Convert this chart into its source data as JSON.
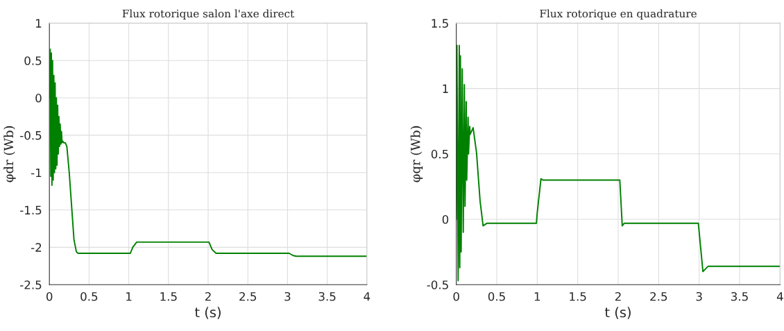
{
  "chart_data": [
    {
      "type": "line",
      "title": "Flux rotorique salon l'axe direct",
      "xlabel": "t (s)",
      "ylabel": "φdr (Wb)",
      "xlim": [
        0,
        4
      ],
      "ylim": [
        -2.5,
        1
      ],
      "xticks": [
        0,
        0.5,
        1,
        1.5,
        2,
        2.5,
        3,
        3.5,
        4
      ],
      "yticks": [
        -2.5,
        -2,
        -1.5,
        -1,
        -0.5,
        0,
        0.5,
        1
      ],
      "grid": true,
      "legend": false,
      "marker": "none",
      "line_style": "solid",
      "series": [
        {
          "color": "#008000",
          "x": [
            0,
            0.01,
            0.018,
            0.025,
            0.032,
            0.04,
            0.048,
            0.056,
            0.064,
            0.072,
            0.08,
            0.088,
            0.096,
            0.104,
            0.112,
            0.12,
            0.128,
            0.136,
            0.144,
            0.152,
            0.16,
            0.17,
            0.18,
            0.2,
            0.22,
            0.25,
            0.28,
            0.31,
            0.34,
            0.36,
            1.02,
            1.05,
            1.1,
            2.01,
            2.05,
            2.1,
            3.02,
            3.07,
            3.11,
            4
          ],
          "values": [
            0,
            0.65,
            -1.05,
            0.6,
            -1.17,
            0.5,
            -1.1,
            0.3,
            -1.0,
            0.2,
            -0.95,
            0.0,
            -0.9,
            -0.1,
            -0.75,
            -0.25,
            -0.65,
            -0.35,
            -0.62,
            -0.45,
            -0.6,
            -0.58,
            -0.6,
            -0.6,
            -0.65,
            -1.0,
            -1.45,
            -1.9,
            -2.06,
            -2.08,
            -2.08,
            -2.0,
            -1.93,
            -1.93,
            -2.03,
            -2.08,
            -2.08,
            -2.11,
            -2.12,
            -2.12
          ]
        }
      ]
    },
    {
      "type": "line",
      "title": "Flux rotorique en quadrature",
      "xlabel": "t (s)",
      "ylabel": "φqr (Wb)",
      "xlim": [
        0,
        4
      ],
      "ylim": [
        -0.5,
        1.5
      ],
      "xticks": [
        0,
        0.5,
        1,
        1.5,
        2,
        2.5,
        3,
        3.5,
        4
      ],
      "yticks": [
        -0.5,
        0,
        0.5,
        1,
        1.5
      ],
      "grid": true,
      "legend": false,
      "marker": "none",
      "line_style": "solid",
      "series": [
        {
          "color": "#008000",
          "x": [
            0,
            0.008,
            0.023,
            0.037,
            0.043,
            0.051,
            0.06,
            0.074,
            0.086,
            0.1,
            0.108,
            0.123,
            0.129,
            0.146,
            0.151,
            0.166,
            0.171,
            0.208,
            0.25,
            0.294,
            0.331,
            0.38,
            0.99,
            1.0,
            1.046,
            1.07,
            2.02,
            2.05,
            2.076,
            2.99,
            3.047,
            3.11,
            4
          ],
          "values": [
            0,
            1.33,
            -0.47,
            1.33,
            -0.37,
            1.25,
            -0.25,
            1.15,
            -0.1,
            1.03,
            0.1,
            0.9,
            0.3,
            0.78,
            0.5,
            0.71,
            0.65,
            0.7,
            0.51,
            0.14,
            -0.05,
            -0.03,
            -0.03,
            0.05,
            0.31,
            0.3,
            0.3,
            -0.05,
            -0.03,
            -0.03,
            -0.4,
            -0.36,
            -0.36
          ]
        }
      ]
    }
  ]
}
